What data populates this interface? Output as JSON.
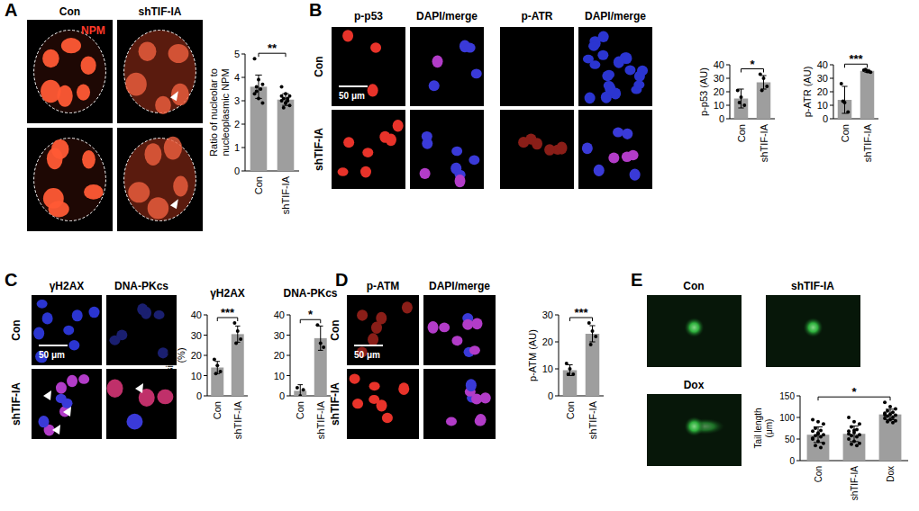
{
  "panels": {
    "A": {
      "letter": "A",
      "columns": [
        "Con",
        "shTIF-IA"
      ],
      "stain": "NPM"
    },
    "B": {
      "letter": "B",
      "columns": [
        "p-p53",
        "DAPI/merge",
        "p-ATR",
        "DAPI/merge"
      ],
      "rows": [
        "Con",
        "shTIF-IA"
      ],
      "scale_bar": "50 μm"
    },
    "C": {
      "letter": "C",
      "columns": [
        "γH2AX",
        "DNA-PKcs"
      ],
      "rows": [
        "Con",
        "shTIF-IA"
      ],
      "scale_bar": "50 μm"
    },
    "D": {
      "letter": "D",
      "columns": [
        "p-ATM",
        "DAPI/merge"
      ],
      "rows": [
        "Con",
        "shTIF-IA"
      ],
      "scale_bar": "50 μm"
    },
    "E": {
      "letter": "E",
      "labels": [
        "Con",
        "shTIF-IA",
        "Dox"
      ]
    }
  },
  "chart_data": [
    {
      "type": "bar",
      "ylabel": "Ratio of nucleolar to nucleoplasmic NPM",
      "categories": [
        "Con",
        "shTIF-IA"
      ],
      "values": [
        3.6,
        3.05
      ],
      "errors": [
        0.5,
        0.25
      ],
      "points": [
        [
          4.8,
          3.9,
          3.7,
          3.6,
          3.5,
          3.3,
          3.1,
          2.9,
          3.4
        ],
        [
          3.6,
          3.3,
          3.2,
          3.1,
          3.0,
          3.0,
          2.9,
          2.8,
          2.7,
          3.1,
          3.2,
          2.9
        ]
      ],
      "ylim": [
        0,
        5
      ],
      "yticks": [
        0,
        1,
        2,
        3,
        4,
        5
      ],
      "color": "#9e9e9e",
      "annotation": "**"
    },
    {
      "type": "bar",
      "ylabel": "p-p53 (AU)",
      "categories": [
        "Con",
        "shTIF-IA"
      ],
      "values": [
        15,
        27
      ],
      "errors": [
        7,
        5
      ],
      "points": [
        [
          21,
          16,
          10,
          12
        ],
        [
          33,
          30,
          24,
          21
        ]
      ],
      "ylim": [
        0,
        40
      ],
      "yticks": [
        0,
        10,
        20,
        30,
        40
      ],
      "color": "#9e9e9e",
      "annotation": "*"
    },
    {
      "type": "bar",
      "ylabel": "p-ATR (AU)",
      "categories": [
        "Con",
        "shTIF-IA"
      ],
      "values": [
        14,
        35.5
      ],
      "errors": [
        10,
        1
      ],
      "points": [
        [
          26,
          12,
          5,
          13
        ],
        [
          36,
          35,
          34.5,
          36.5,
          35
        ]
      ],
      "ylim": [
        0,
        40
      ],
      "yticks": [
        0,
        10,
        20,
        30,
        40
      ],
      "color": "#9e9e9e",
      "annotation": "***"
    },
    {
      "type": "bar",
      "title": "γH2AX",
      "ylabel": "positive cells (%)",
      "categories": [
        "Con",
        "shTIF-IA"
      ],
      "values": [
        14,
        30.5
      ],
      "errors": [
        3,
        4
      ],
      "points": [
        [
          18,
          15,
          12,
          11
        ],
        [
          36,
          32,
          28,
          26
        ]
      ],
      "ylim": [
        0,
        40
      ],
      "yticks": [
        0,
        10,
        20,
        30,
        40
      ],
      "color": "#9e9e9e",
      "annotation": "***"
    },
    {
      "type": "bar",
      "title": "DNA-PKcs",
      "categories": [
        "Con",
        "shTIF-IA"
      ],
      "values": [
        2.5,
        28.5
      ],
      "errors": [
        3,
        6
      ],
      "points": [
        [
          4,
          0,
          3
        ],
        [
          35,
          26,
          24
        ]
      ],
      "ylim": [
        0,
        40
      ],
      "yticks": [
        0,
        10,
        20,
        30,
        40
      ],
      "color": "#9e9e9e",
      "annotation": "*"
    },
    {
      "type": "bar",
      "ylabel": "p-ATM (AU)",
      "categories": [
        "Con",
        "shTIF-IA"
      ],
      "values": [
        9.5,
        23
      ],
      "errors": [
        2,
        3
      ],
      "points": [
        [
          12,
          10,
          8,
          8
        ],
        [
          27,
          24,
          22,
          19
        ]
      ],
      "ylim": [
        0,
        30
      ],
      "yticks": [
        0,
        10,
        20,
        30
      ],
      "color": "#9e9e9e",
      "annotation": "***"
    },
    {
      "type": "bar",
      "ylabel": "Tail length (μm)",
      "categories": [
        "Con",
        "shTIF-IA",
        "Dox"
      ],
      "values": [
        60,
        62,
        107
      ],
      "errors": [
        18,
        18,
        12
      ],
      "points": [
        [
          95,
          90,
          85,
          75,
          70,
          68,
          62,
          60,
          58,
          55,
          50,
          45,
          40,
          35,
          30,
          52,
          64
        ],
        [
          100,
          90,
          85,
          78,
          72,
          68,
          65,
          60,
          58,
          55,
          50,
          45,
          40,
          38,
          35,
          62,
          70
        ],
        [
          135,
          125,
          120,
          115,
          112,
          110,
          108,
          105,
          103,
          100,
          98,
          95,
          92,
          90,
          88,
          106
        ]
      ],
      "ylim": [
        0,
        150
      ],
      "yticks": [
        0,
        50,
        100,
        150
      ],
      "color": "#9e9e9e",
      "annotation": "*"
    }
  ]
}
